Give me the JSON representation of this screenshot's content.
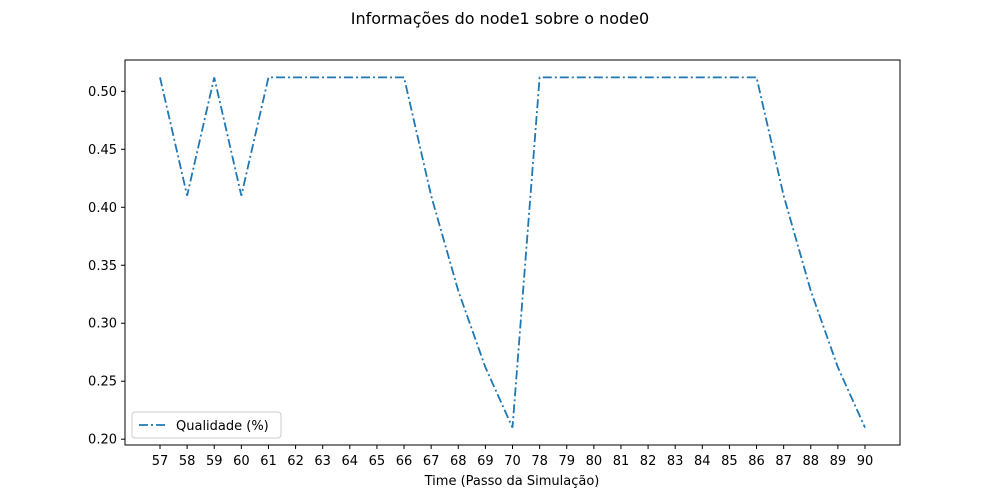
{
  "chart_data": {
    "type": "line",
    "title": "Informações do node1 sobre o node0",
    "xlabel": "Time (Passo da Simulação)",
    "ylabel": "",
    "x": [
      "57",
      "58",
      "59",
      "60",
      "61",
      "62",
      "63",
      "64",
      "65",
      "66",
      "67",
      "68",
      "69",
      "70",
      "78",
      "79",
      "80",
      "81",
      "82",
      "83",
      "84",
      "85",
      "86",
      "87",
      "88",
      "89",
      "90"
    ],
    "series": [
      {
        "name": "Qualidade (%)",
        "color": "#1f77b4",
        "line_style": "dashdot",
        "values": [
          0.512,
          0.41,
          0.512,
          0.41,
          0.512,
          0.512,
          0.512,
          0.512,
          0.512,
          0.512,
          0.41,
          0.328,
          0.262,
          0.21,
          0.512,
          0.512,
          0.512,
          0.512,
          0.512,
          0.512,
          0.512,
          0.512,
          0.512,
          0.41,
          0.328,
          0.262,
          0.21
        ]
      }
    ],
    "yticks": [
      "0.20",
      "0.25",
      "0.30",
      "0.35",
      "0.40",
      "0.45",
      "0.50"
    ],
    "ylim": [
      0.195,
      0.527
    ],
    "grid": false,
    "legend_position": "lower-left"
  }
}
